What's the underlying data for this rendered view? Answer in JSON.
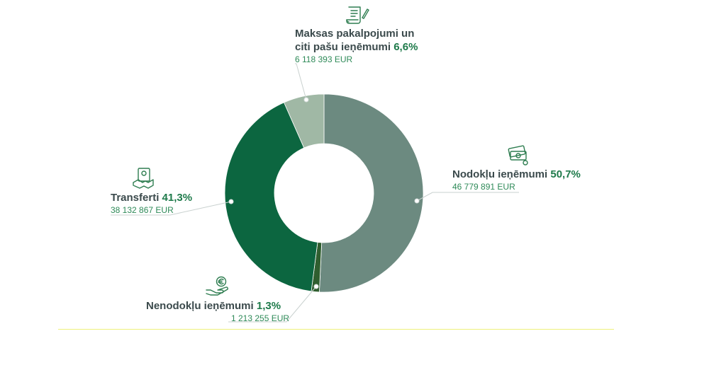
{
  "chart_data": {
    "type": "pie",
    "donut": true,
    "currency": "EUR",
    "slices": [
      {
        "name_prefix": "Nodokļu ieņēmumi",
        "percent_label": "50,7%",
        "percent": 50.7,
        "amount": 46779891,
        "amount_label": "46 779 891 EUR",
        "color": "#6c8a80",
        "icon": "money-bills-icon"
      },
      {
        "name_prefix": "Nenodokļu ieņēmumi",
        "percent_label": "1,3%",
        "percent": 1.3,
        "amount": 1213255,
        "amount_label": "1 213 255 EUR",
        "color": "#2f5e2f",
        "icon": "hand-euro-coin-icon"
      },
      {
        "name_prefix": "Transferti",
        "percent_label": "41,3%",
        "percent": 41.3,
        "amount": 38132867,
        "amount_label": "38 132 867 EUR",
        "color": "#0c6640",
        "icon": "handshake-certificate-icon"
      },
      {
        "name_prefix": "Maksas pakalpojumi un citi pašu ieņēmumi",
        "line1": "Maksas pakalpojumi un",
        "line2": "citi pašu ieņēmumi",
        "percent_label": "6,6%",
        "percent": 6.6,
        "amount": 6118393,
        "amount_label": "6 118 393 EUR",
        "color": "#a0b8a5",
        "icon": "document-pen-icon"
      }
    ]
  }
}
